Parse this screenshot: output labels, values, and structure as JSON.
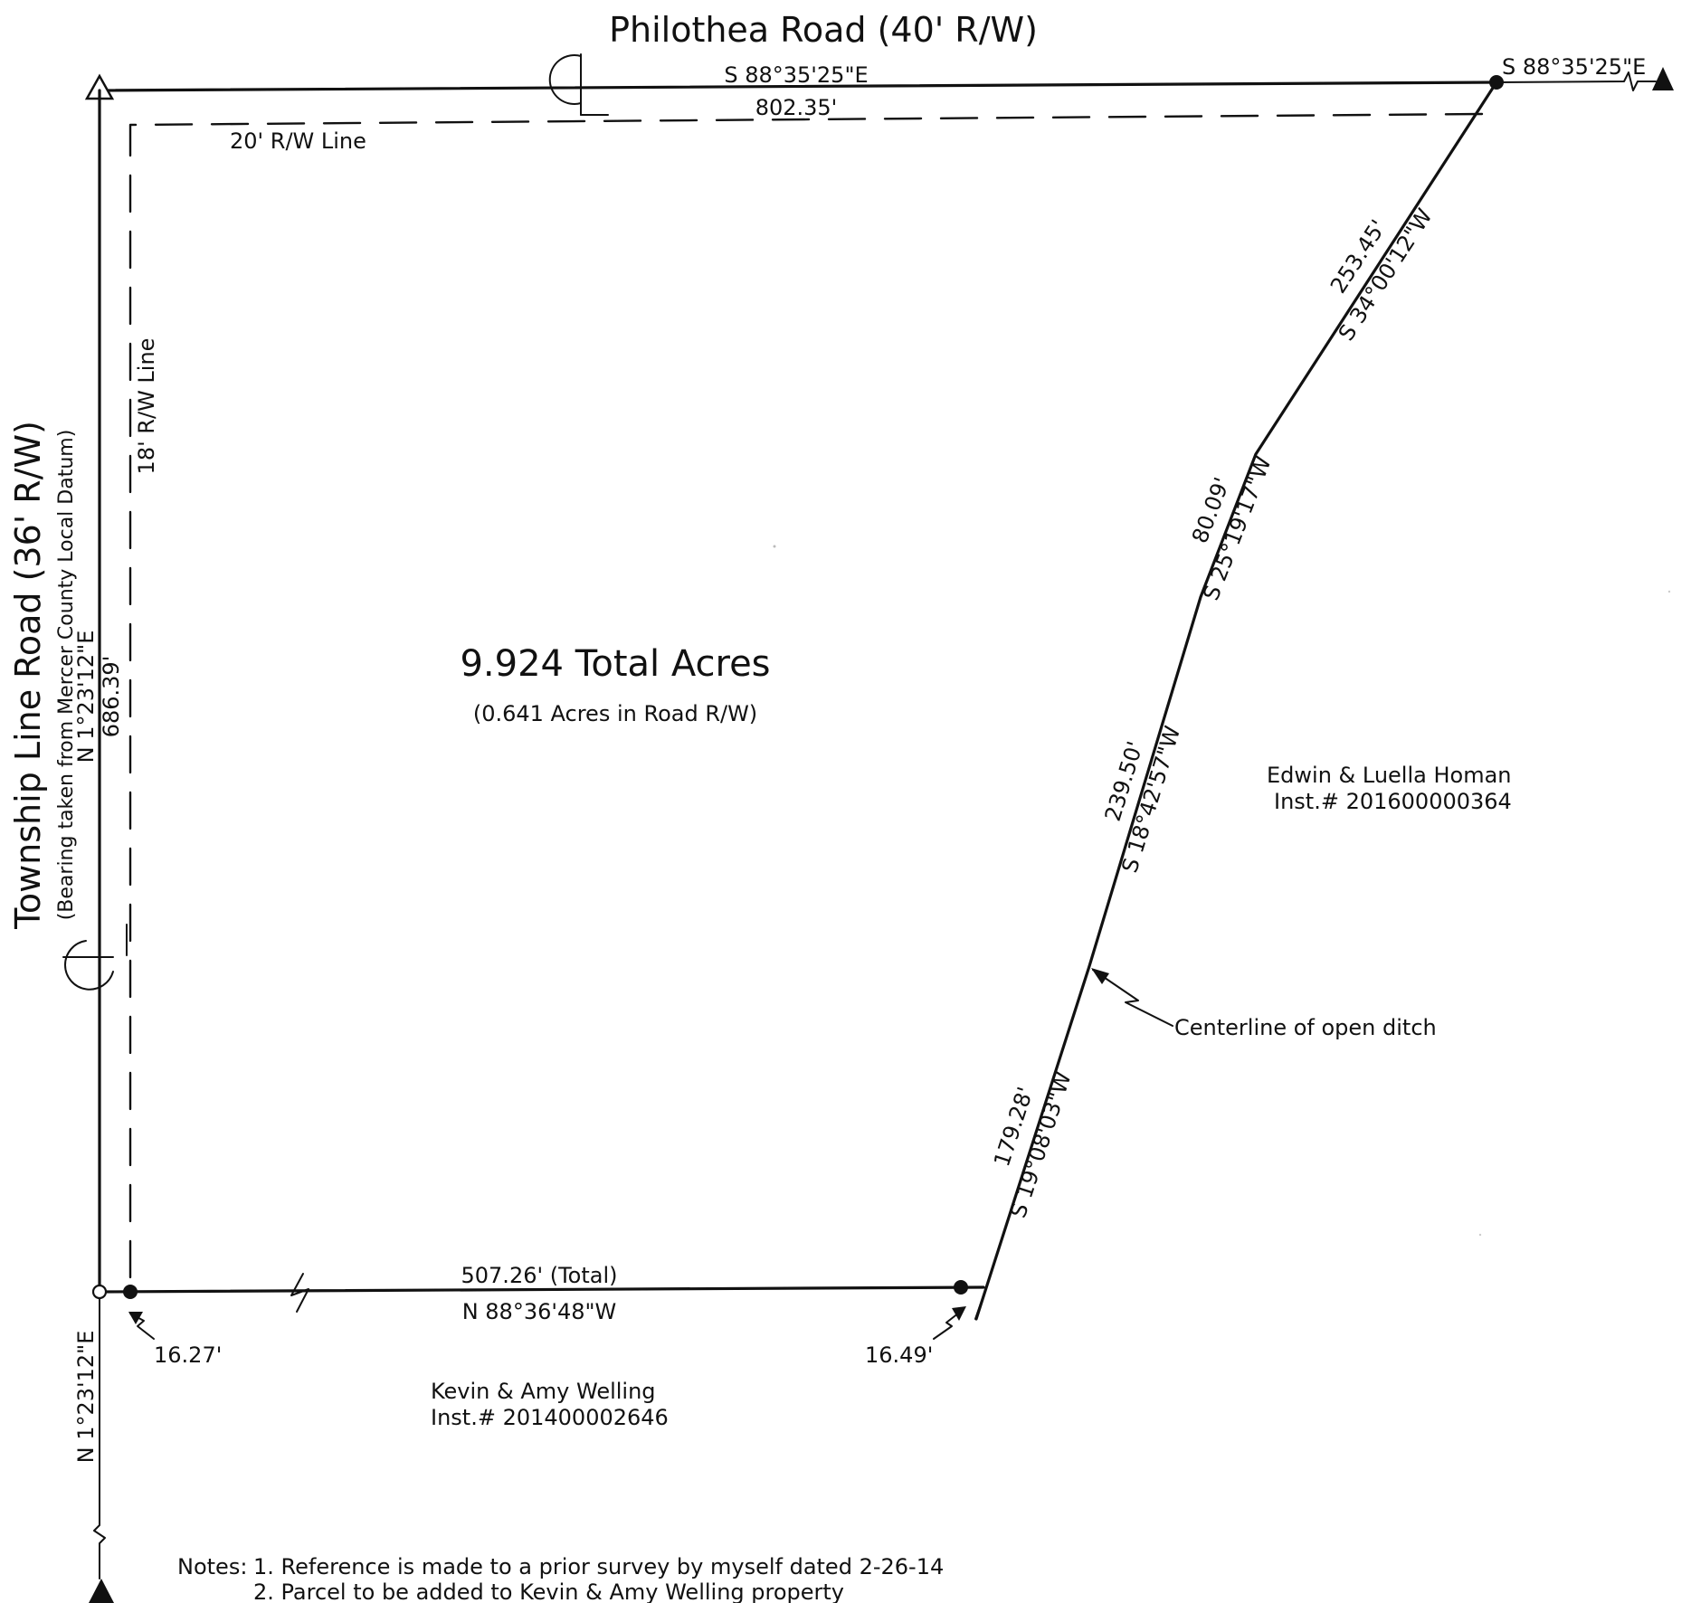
{
  "roads": {
    "north": "Philothea Road (40' R/W)",
    "west": "Township Line Road (36' R/W)",
    "west_note": "(Bearing taken from Mercer County Local Datum)"
  },
  "boundary": {
    "north_bearing": "S 88°35'25\"E",
    "north_distance": "802.35'",
    "north_ext_bearing": "S 88°35'25\"E",
    "west_bearing": "N 1°23'12\"E",
    "west_distance": "686.39'",
    "west_ext_bearing": "N 1°23'12\"E",
    "south_distance": "507.26' (Total)",
    "south_bearing": "N 88°36'48\"W",
    "south_offset_west": "16.27'",
    "south_offset_east": "16.49'",
    "east_courses": [
      {
        "distance": "253.45'",
        "bearing": "S 34°00'12\"W"
      },
      {
        "distance": "80.09'",
        "bearing": "S 25°19'17\"W"
      },
      {
        "distance": "239.50'",
        "bearing": "S 18°42'57\"W"
      },
      {
        "distance": "179.28'",
        "bearing": "S 19°08'03\"W"
      }
    ]
  },
  "rw_lines": {
    "north": "20' R/W Line",
    "west": "18' R/W Line"
  },
  "area": {
    "total": "9.924 Total Acres",
    "in_road": "(0.641 Acres in Road R/W)"
  },
  "ditch_label": "Centerline of open ditch",
  "adjoiners": {
    "east_name": "Edwin & Luella Homan",
    "east_inst": "Inst.# 201600000364",
    "south_name": "Kevin & Amy Welling",
    "south_inst": "Inst.# 201400002646"
  },
  "notes": {
    "prefix": "Notes:",
    "items": [
      "1. Reference is made to a prior survey by myself dated 2-26-14",
      "2. Parcel to be added to Kevin & Amy Welling property"
    ]
  }
}
